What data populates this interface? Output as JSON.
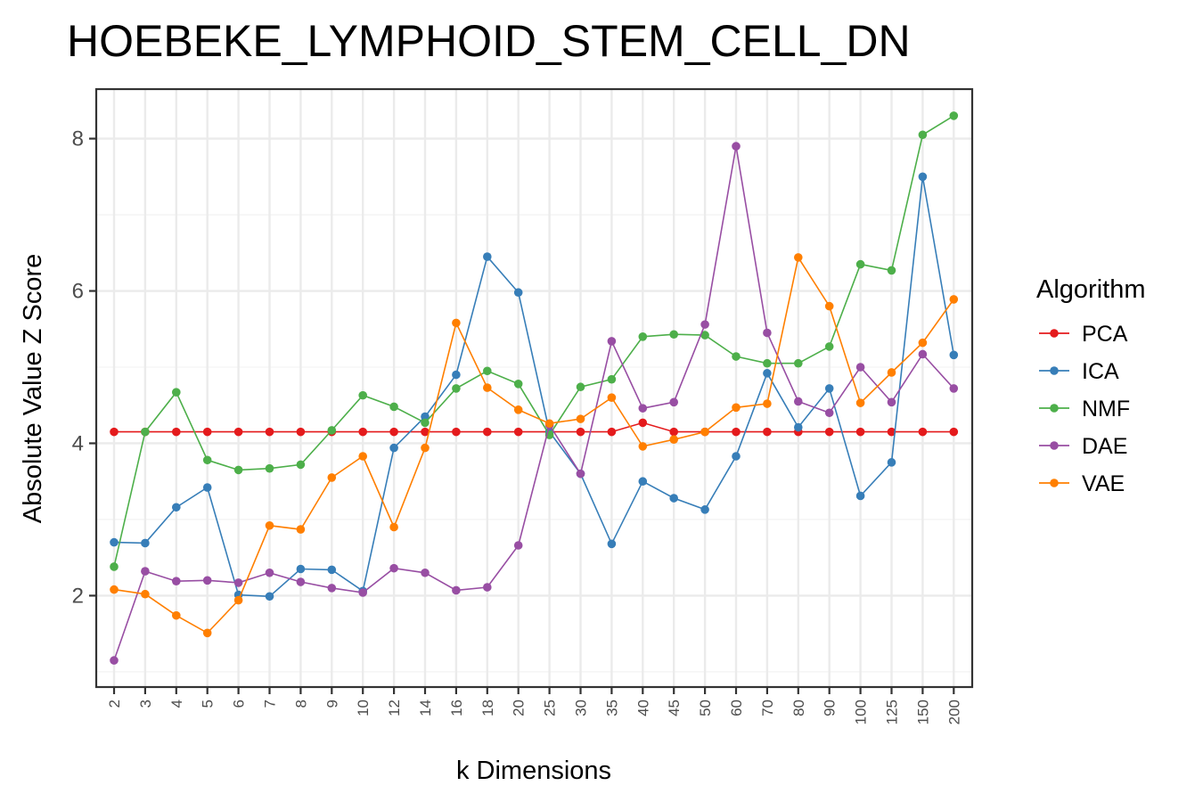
{
  "chart_data": {
    "type": "line",
    "title": "HOEBEKE_LYMPHOID_STEM_CELL_DN",
    "xlabel": "k Dimensions",
    "ylabel": "Absolute Value Z Score",
    "ylim": [
      0.8,
      8.65
    ],
    "yticks": [
      2,
      4,
      6,
      8
    ],
    "grid": true,
    "legend_title": "Algorithm",
    "legend_position": "right",
    "categories": [
      "2",
      "3",
      "4",
      "5",
      "6",
      "7",
      "8",
      "9",
      "10",
      "12",
      "14",
      "16",
      "18",
      "20",
      "25",
      "30",
      "35",
      "40",
      "45",
      "50",
      "60",
      "70",
      "80",
      "90",
      "100",
      "125",
      "150",
      "200"
    ],
    "series": [
      {
        "name": "PCA",
        "color": "#e41a1c",
        "values": [
          4.15,
          4.15,
          4.15,
          4.15,
          4.15,
          4.15,
          4.15,
          4.15,
          4.15,
          4.15,
          4.15,
          4.15,
          4.15,
          4.15,
          4.15,
          4.15,
          4.15,
          4.27,
          4.15,
          4.15,
          4.15,
          4.15,
          4.15,
          4.15,
          4.15,
          4.15,
          4.15,
          4.15
        ]
      },
      {
        "name": "ICA",
        "color": "#377eb8",
        "values": [
          2.7,
          2.69,
          3.16,
          3.42,
          2.01,
          1.99,
          2.35,
          2.34,
          2.06,
          3.94,
          4.35,
          4.9,
          6.45,
          5.98,
          4.15,
          3.6,
          2.68,
          3.5,
          3.28,
          3.13,
          3.83,
          4.92,
          4.21,
          4.72,
          3.31,
          3.75,
          7.5,
          5.16
        ]
      },
      {
        "name": "NMF",
        "color": "#4daf4a",
        "values": [
          2.38,
          4.15,
          4.67,
          3.78,
          3.65,
          3.67,
          3.72,
          4.17,
          4.63,
          4.48,
          4.27,
          4.72,
          4.95,
          4.78,
          4.11,
          4.74,
          4.84,
          5.4,
          5.43,
          5.42,
          5.14,
          5.05,
          5.05,
          5.27,
          6.35,
          6.27,
          8.05,
          8.3
        ]
      },
      {
        "name": "DAE",
        "color": "#984ea3",
        "values": [
          1.15,
          2.32,
          2.19,
          2.2,
          2.17,
          2.3,
          2.18,
          2.1,
          2.04,
          2.36,
          2.3,
          2.07,
          2.11,
          2.66,
          4.24,
          3.6,
          5.34,
          4.46,
          4.54,
          5.56,
          7.9,
          5.45,
          4.55,
          4.4,
          5.0,
          4.54,
          5.17,
          4.72
        ]
      },
      {
        "name": "VAE",
        "color": "#ff7f00",
        "values": [
          2.08,
          2.02,
          1.74,
          1.51,
          1.94,
          2.92,
          2.87,
          3.55,
          3.83,
          2.9,
          3.94,
          5.58,
          4.73,
          4.44,
          4.26,
          4.32,
          4.6,
          3.96,
          4.05,
          4.15,
          4.47,
          4.52,
          6.44,
          5.8,
          4.53,
          4.93,
          5.32,
          5.89
        ]
      }
    ]
  }
}
